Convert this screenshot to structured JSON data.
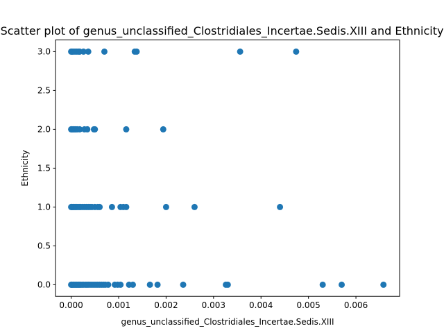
{
  "chart_data": {
    "type": "scatter",
    "title": "Scatter plot of genus_unclassified_Clostridiales_Incertae.Sedis.XIII and Ethnicity",
    "xlabel": "genus_unclassified_Clostridiales_Incertae.Sedis.XIII",
    "ylabel": "Ethnicity",
    "xlim": [
      -0.00033,
      0.00692
    ],
    "ylim": [
      -0.15,
      3.15
    ],
    "xticks": [
      0.0,
      0.001,
      0.002,
      0.003,
      0.004,
      0.005,
      0.006
    ],
    "xtick_labels": [
      "0.000",
      "0.001",
      "0.002",
      "0.003",
      "0.004",
      "0.005",
      "0.006"
    ],
    "yticks": [
      0.0,
      0.5,
      1.0,
      1.5,
      2.0,
      2.5,
      3.0
    ],
    "ytick_labels": [
      "0.0",
      "0.5",
      "1.0",
      "1.5",
      "2.0",
      "2.5",
      "3.0"
    ],
    "grid": false,
    "legend": "none",
    "color": "#1f77b4",
    "series": [
      {
        "x": [
          0.0,
          1e-05,
          2e-05,
          4e-05,
          6e-05,
          8e-05,
          0.0001,
          0.00012,
          0.00014,
          0.00016,
          0.00018,
          0.0002,
          0.00023,
          0.00026,
          0.0003,
          0.00033,
          0.00036,
          0.0004,
          0.00044,
          0.00048,
          0.00052,
          0.00056,
          0.0006,
          0.00064,
          0.00068,
          0.00072,
          0.00078,
          0.00092,
          0.00098,
          0.00104,
          0.00122,
          0.0013,
          0.00166,
          0.00182,
          0.00236,
          0.00326,
          0.0033,
          0.0053,
          0.0057,
          0.00658,
          0.0,
          1e-05,
          2e-05,
          4e-05,
          6e-05,
          8e-05,
          0.0001,
          0.00012,
          0.00015,
          0.00018,
          0.0002,
          0.00024,
          0.00028,
          0.00032,
          0.00036,
          0.0004,
          0.00044,
          0.0005,
          0.00056,
          0.0006,
          0.00086,
          0.00104,
          0.0011,
          0.00116,
          0.002,
          0.0026,
          0.0044,
          0.0,
          1e-05,
          2e-05,
          4e-05,
          6e-05,
          8e-05,
          0.0001,
          0.00013,
          0.00018,
          0.00028,
          0.00034,
          0.00048,
          0.0005,
          0.00116,
          0.00194,
          0.0,
          2e-05,
          4e-05,
          8e-05,
          0.00012,
          0.00016,
          0.00018,
          0.00026,
          0.00036,
          0.0007,
          0.00134,
          0.00138,
          0.00356,
          0.00474
        ],
        "y": [
          0,
          0,
          0,
          0,
          0,
          0,
          0,
          0,
          0,
          0,
          0,
          0,
          0,
          0,
          0,
          0,
          0,
          0,
          0,
          0,
          0,
          0,
          0,
          0,
          0,
          0,
          0,
          0,
          0,
          0,
          0,
          0,
          0,
          0,
          0,
          0,
          0,
          0,
          0,
          0,
          1,
          1,
          1,
          1,
          1,
          1,
          1,
          1,
          1,
          1,
          1,
          1,
          1,
          1,
          1,
          1,
          1,
          1,
          1,
          1,
          1,
          1,
          1,
          1,
          1,
          1,
          1,
          2,
          2,
          2,
          2,
          2,
          2,
          2,
          2,
          2,
          2,
          2,
          2,
          2,
          2,
          2,
          3,
          3,
          3,
          3,
          3,
          3,
          3,
          3,
          3,
          3,
          3,
          3,
          3,
          3
        ]
      }
    ]
  }
}
